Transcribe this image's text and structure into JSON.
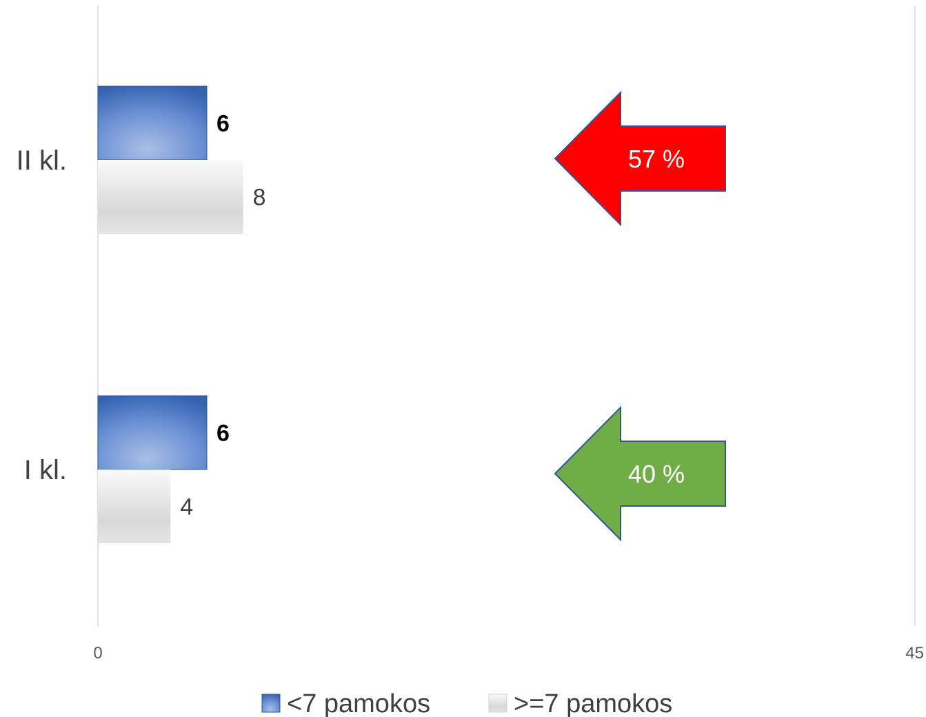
{
  "chart_data": {
    "type": "bar",
    "orientation": "horizontal",
    "categories": [
      "II kl.",
      "I kl."
    ],
    "series": [
      {
        "name": "<7 pamokos",
        "values": [
          6,
          6
        ],
        "color": "#4472C4",
        "label_bold": true
      },
      {
        "name": ">=7 pamokos",
        "values": [
          8,
          4
        ],
        "color": "#D9D9D9",
        "label_bold": false
      }
    ],
    "xlim": [
      0,
      45
    ],
    "x_ticks": [
      "0",
      "45"
    ],
    "title": "",
    "xlabel": "",
    "ylabel": "",
    "legend_position": "bottom",
    "annotations": [
      {
        "category": "II kl.",
        "text": "57 %",
        "shape": "left-arrow",
        "color": "#FF0000"
      },
      {
        "category": "I kl.",
        "text": "40 %",
        "shape": "left-arrow",
        "color": "#70AD47"
      }
    ]
  }
}
